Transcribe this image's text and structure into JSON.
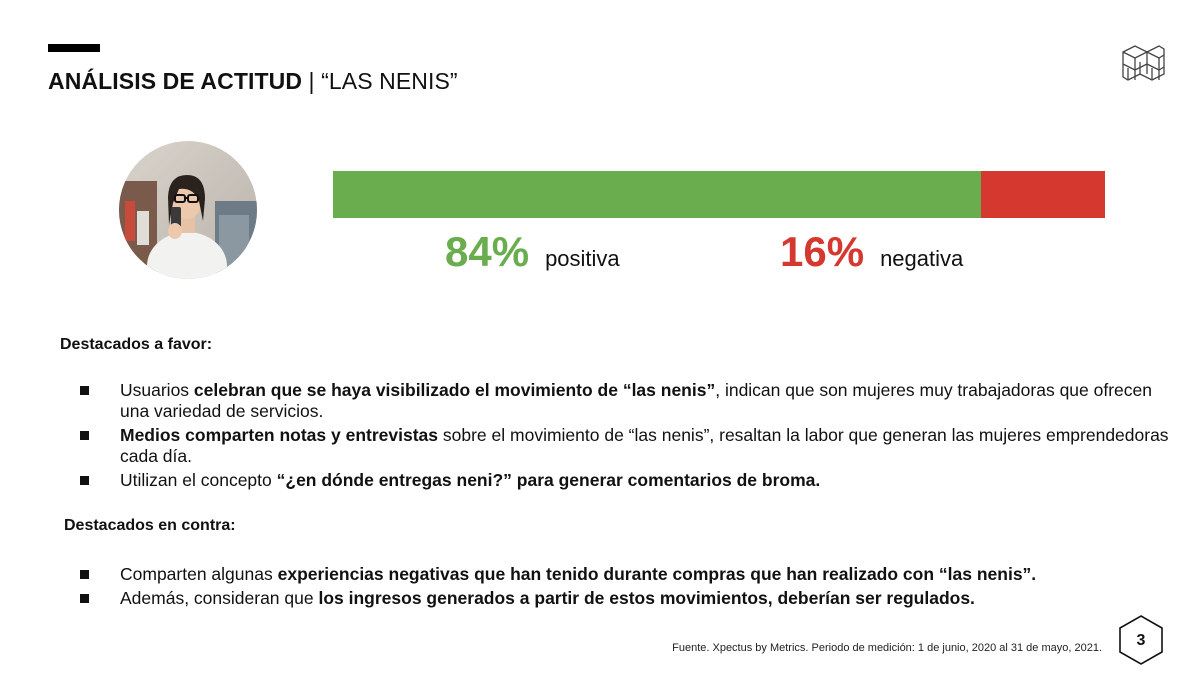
{
  "header": {
    "title_bold": "ANÁLISIS DE ACTITUD",
    "title_rest": " | “LAS NENIS”"
  },
  "sentiment": {
    "positive": {
      "value": "84%",
      "label": "positiva",
      "fraction": 0.84,
      "color": "#69ad4f"
    },
    "negative": {
      "value": "16%",
      "label": "negativa",
      "fraction": 0.16,
      "color": "#d5382e"
    }
  },
  "favor": {
    "heading": "Destacados a favor:",
    "items": [
      {
        "pre": "Usuarios ",
        "bold": "celebran que se haya visibilizado el movimiento de “las nenis”",
        "post": ", indican que son mujeres muy trabajadoras que ofrecen una variedad de servicios."
      },
      {
        "pre": "",
        "bold": "Medios comparten notas y entrevistas",
        "post": " sobre el movimiento de “las nenis”, resaltan la labor que generan las mujeres emprendedoras cada día."
      },
      {
        "pre": "Utilizan el concepto ",
        "bold": "“¿en dónde entregas neni?” para generar comentarios de broma.",
        "post": ""
      }
    ]
  },
  "contra": {
    "heading": "Destacados en contra:",
    "items": [
      {
        "pre": "Comparten algunas ",
        "bold": "experiencias negativas que han tenido durante compras que han realizado con “las nenis”.",
        "post": ""
      },
      {
        "pre": "Además, consideran que ",
        "bold": "los ingresos generados a partir de estos movimientos, deberían ser regulados.",
        "post": ""
      }
    ]
  },
  "footer": {
    "source": "Fuente. Xpectus by Metrics. Periodo de medición: 1 de junio, 2020 al 31 de mayo, 2021."
  },
  "page_number": "3"
}
